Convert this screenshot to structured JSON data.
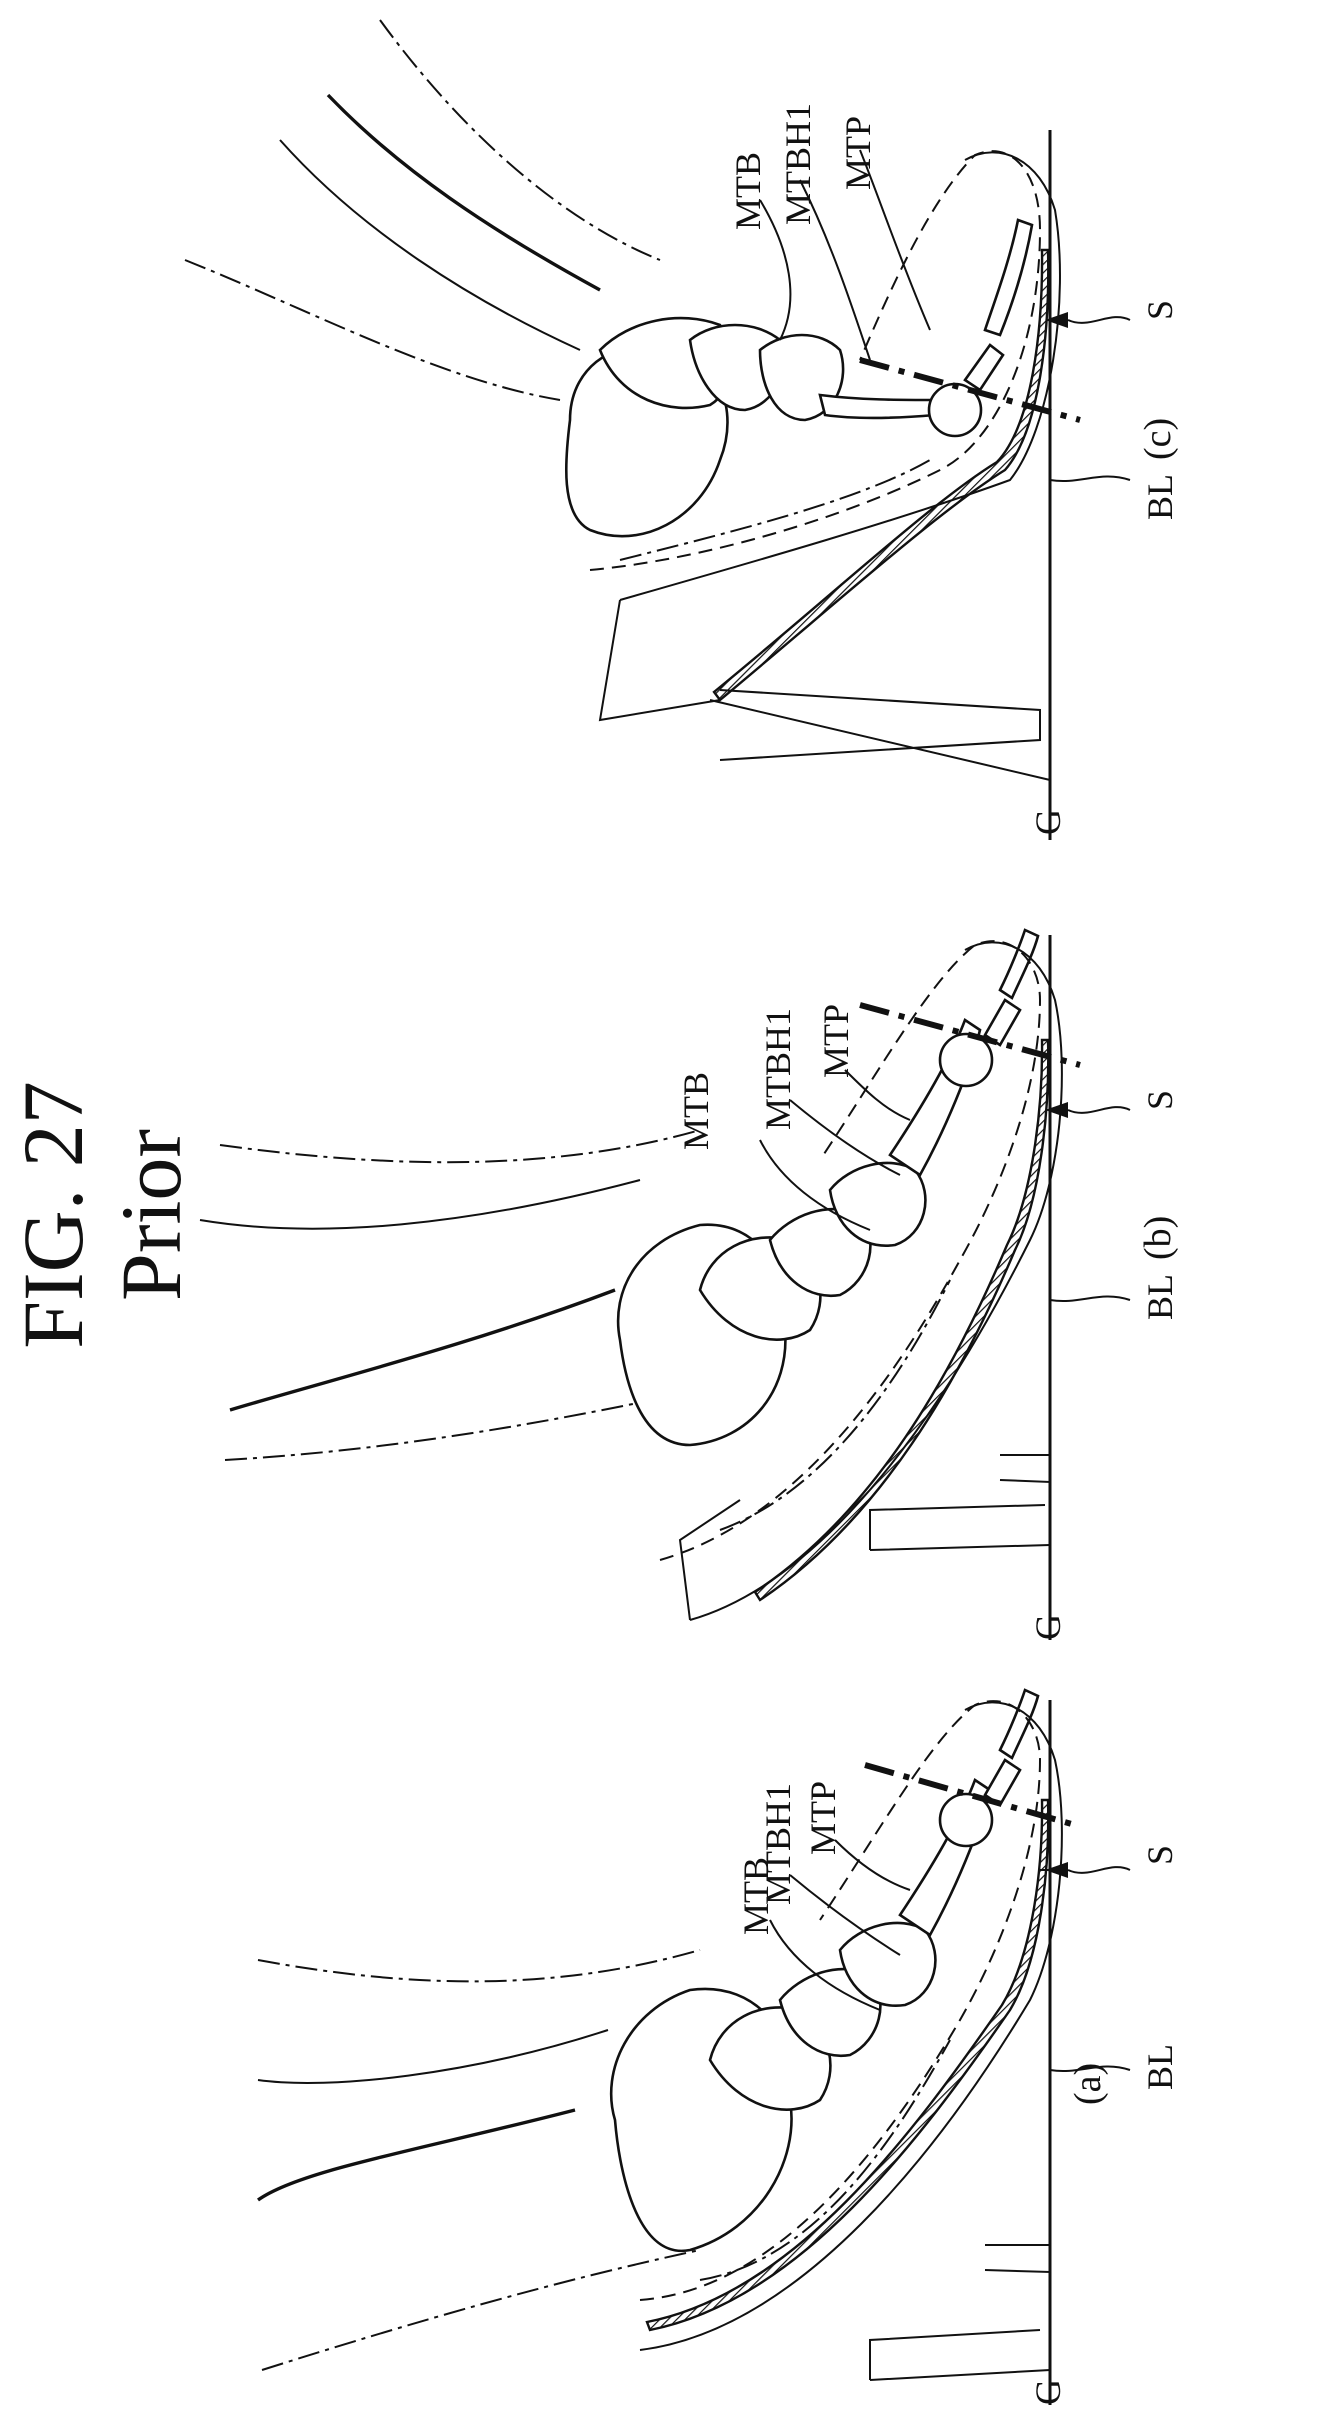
{
  "figure": {
    "title": "FIG. 27",
    "subtitle": "Prior"
  },
  "panels": [
    {
      "id": "a",
      "caption": "(a)",
      "labels": {
        "mtb": "MTB",
        "mtbh1": "MTBH1",
        "mtp": "MTP",
        "s": "S",
        "bl": "BL",
        "g": "G"
      }
    },
    {
      "id": "b",
      "caption": "(b)",
      "labels": {
        "mtb": "MTB",
        "mtbh1": "MTBH1",
        "mtp": "MTP",
        "s": "S",
        "bl": "BL",
        "g": "G"
      }
    },
    {
      "id": "c",
      "caption": "(c)",
      "labels": {
        "mtb": "MTB",
        "mtbh1": "MTBH1",
        "mtp": "MTP",
        "s": "S",
        "bl": "BL",
        "g": "G"
      }
    }
  ],
  "colors": {
    "ink": "#111111",
    "paper": "#ffffff"
  }
}
